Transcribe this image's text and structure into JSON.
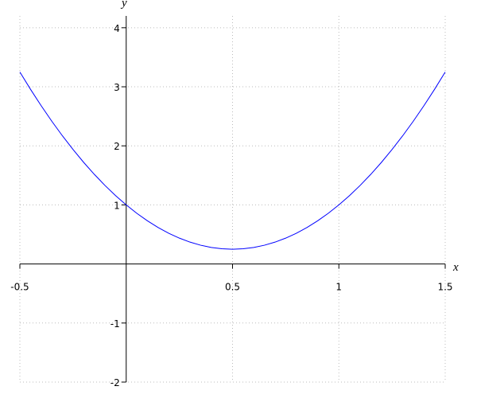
{
  "chart_data": {
    "type": "line",
    "xlabel": "x",
    "ylabel": "y",
    "x": [
      -0.5,
      -0.45,
      -0.4,
      -0.35,
      -0.3,
      -0.25,
      -0.2,
      -0.15,
      -0.1,
      -0.05,
      0,
      0.05,
      0.1,
      0.15,
      0.2,
      0.25,
      0.3,
      0.35,
      0.4,
      0.45,
      0.5,
      0.55,
      0.6,
      0.65,
      0.7,
      0.75,
      0.8,
      0.85,
      0.9,
      0.95,
      1,
      1.05,
      1.1,
      1.15,
      1.2,
      1.25,
      1.3,
      1.35,
      1.4,
      1.45,
      1.5
    ],
    "series": [
      {
        "color": "#0000ff",
        "values": [
          3.25,
          2.9575,
          2.68,
          2.4175,
          2.17,
          1.9375,
          1.72,
          1.5175,
          1.33,
          1.1575,
          1,
          0.8575,
          0.73,
          0.6175,
          0.52,
          0.4375,
          0.37,
          0.3175,
          0.28,
          0.2575,
          0.25,
          0.2575,
          0.28,
          0.3175,
          0.37,
          0.4375,
          0.52,
          0.6175,
          0.73,
          0.8575,
          1,
          1.1575,
          1.33,
          1.5175,
          1.72,
          1.9375,
          2.17,
          2.4175,
          2.68,
          2.9575,
          3.25
        ]
      }
    ],
    "xlim": [
      -0.5,
      1.5
    ],
    "ylim": [
      -2,
      4.2
    ],
    "xticks": [
      -0.5,
      0.5,
      1,
      1.5
    ],
    "yticks": [
      -2,
      -1,
      1,
      2,
      3,
      4
    ],
    "grid": true
  }
}
